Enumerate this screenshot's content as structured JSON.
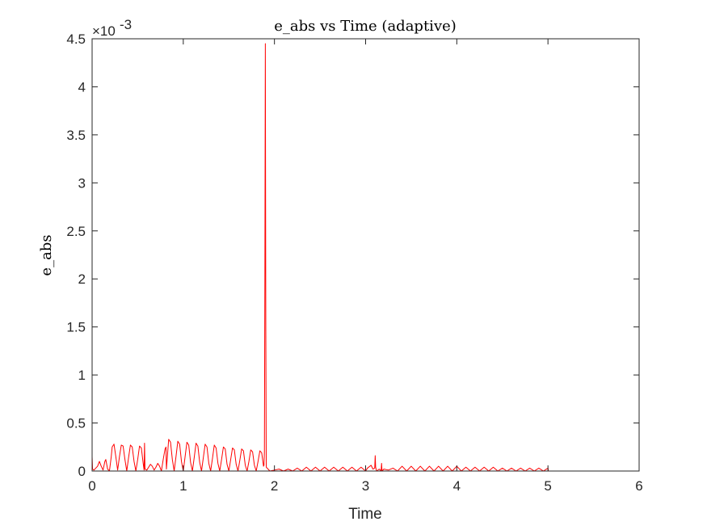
{
  "chart_data": {
    "type": "line",
    "title": "e_abs vs Time (adaptive)",
    "xlabel": "Time",
    "ylabel": "e_abs",
    "xlim": [
      0,
      6
    ],
    "ylim": [
      0,
      4.5
    ],
    "y_exponent_label": "×10",
    "y_exponent_power": "-3",
    "xticks": [
      0,
      1,
      2,
      3,
      4,
      5,
      6
    ],
    "xtick_labels": [
      "0",
      "1",
      "2",
      "3",
      "4",
      "5",
      "6"
    ],
    "yticks": [
      0,
      0.5,
      1,
      1.5,
      2,
      2.5,
      3,
      3.5,
      4,
      4.5
    ],
    "ytick_labels": [
      "0",
      "0.5",
      "1",
      "1.5",
      "2",
      "2.5",
      "3",
      "3.5",
      "4",
      "4.5"
    ],
    "grid": false,
    "series": [
      {
        "color": "#ff0000",
        "x": [
          0,
          0.005,
          0.02,
          0.06,
          0.08,
          0.1,
          0.12,
          0.14,
          0.15,
          0.17,
          0.19,
          0.21,
          0.22,
          0.24,
          0.26,
          0.28,
          0.3,
          0.32,
          0.34,
          0.36,
          0.38,
          0.4,
          0.42,
          0.44,
          0.46,
          0.48,
          0.5,
          0.52,
          0.54,
          0.56,
          0.57,
          0.575,
          0.58,
          0.6,
          0.62,
          0.64,
          0.66,
          0.68,
          0.7,
          0.72,
          0.74,
          0.76,
          0.78,
          0.8,
          0.81,
          0.815,
          0.84,
          0.86,
          0.88,
          0.9,
          0.92,
          0.94,
          0.96,
          0.98,
          1.0,
          1.02,
          1.04,
          1.06,
          1.08,
          1.1,
          1.12,
          1.14,
          1.16,
          1.18,
          1.2,
          1.22,
          1.24,
          1.26,
          1.28,
          1.3,
          1.32,
          1.34,
          1.36,
          1.38,
          1.4,
          1.42,
          1.44,
          1.46,
          1.48,
          1.5,
          1.52,
          1.54,
          1.56,
          1.58,
          1.6,
          1.62,
          1.64,
          1.66,
          1.68,
          1.7,
          1.72,
          1.74,
          1.76,
          1.78,
          1.8,
          1.82,
          1.84,
          1.86,
          1.88,
          1.885,
          1.89,
          1.895,
          1.9,
          1.905,
          1.91,
          1.93,
          1.95,
          2.0,
          2.05,
          2.1,
          2.15,
          2.2,
          2.25,
          2.3,
          2.35,
          2.4,
          2.45,
          2.5,
          2.55,
          2.6,
          2.65,
          2.7,
          2.75,
          2.8,
          2.85,
          2.9,
          2.95,
          3.0,
          3.02,
          3.06,
          3.08,
          3.1,
          3.105,
          3.11,
          3.115,
          3.12,
          3.15,
          3.17,
          3.175,
          3.18,
          3.2,
          3.25,
          3.3,
          3.35,
          3.4,
          3.45,
          3.5,
          3.55,
          3.6,
          3.65,
          3.7,
          3.75,
          3.8,
          3.85,
          3.9,
          3.95,
          4.0,
          4.05,
          4.1,
          4.15,
          4.2,
          4.25,
          4.3,
          4.35,
          4.4,
          4.45,
          4.5,
          4.55,
          4.6,
          4.65,
          4.7,
          4.75,
          4.8,
          4.85,
          4.9,
          4.95,
          5.0,
          5.005
        ],
        "y": [
          0.15,
          0.02,
          0.01,
          0.05,
          0.1,
          0.05,
          0.01,
          0.1,
          0.12,
          0.02,
          0.0,
          0.15,
          0.25,
          0.28,
          0.15,
          0.01,
          0.15,
          0.27,
          0.26,
          0.12,
          0.0,
          0.14,
          0.27,
          0.25,
          0.1,
          0.0,
          0.12,
          0.26,
          0.24,
          0.08,
          0.01,
          0.29,
          0.02,
          0.01,
          0.04,
          0.07,
          0.05,
          0.01,
          0.04,
          0.08,
          0.05,
          0.0,
          0.12,
          0.23,
          0.25,
          0.02,
          0.33,
          0.3,
          0.12,
          0.0,
          0.15,
          0.31,
          0.28,
          0.1,
          0.0,
          0.15,
          0.3,
          0.27,
          0.09,
          0.0,
          0.14,
          0.29,
          0.26,
          0.09,
          0.0,
          0.14,
          0.28,
          0.25,
          0.08,
          0.0,
          0.13,
          0.27,
          0.24,
          0.08,
          0.0,
          0.12,
          0.25,
          0.23,
          0.07,
          0.0,
          0.12,
          0.24,
          0.22,
          0.07,
          0.0,
          0.11,
          0.23,
          0.21,
          0.06,
          0.0,
          0.1,
          0.22,
          0.2,
          0.06,
          0.0,
          0.1,
          0.21,
          0.19,
          0.05,
          0.06,
          0.2,
          2.0,
          4.45,
          1.5,
          0.04,
          0.02,
          0.0,
          0.01,
          0.02,
          0.0,
          0.02,
          0.0,
          0.03,
          0.0,
          0.04,
          0.0,
          0.04,
          0.0,
          0.04,
          0.0,
          0.04,
          0.0,
          0.04,
          0.0,
          0.04,
          0.0,
          0.04,
          0.0,
          0.03,
          0.06,
          0.02,
          0.03,
          0.16,
          0.04,
          0.02,
          0.0,
          0.02,
          0.0,
          0.08,
          0.0,
          0.02,
          0.01,
          0.03,
          0.0,
          0.05,
          0.0,
          0.05,
          0.0,
          0.05,
          0.0,
          0.05,
          0.0,
          0.05,
          0.0,
          0.05,
          0.0,
          0.05,
          0.0,
          0.04,
          0.0,
          0.04,
          0.0,
          0.04,
          0.0,
          0.04,
          0.0,
          0.03,
          0.0,
          0.03,
          0.0,
          0.03,
          0.0,
          0.03,
          0.0,
          0.03,
          0.0,
          0.03,
          0.0
        ]
      }
    ]
  }
}
